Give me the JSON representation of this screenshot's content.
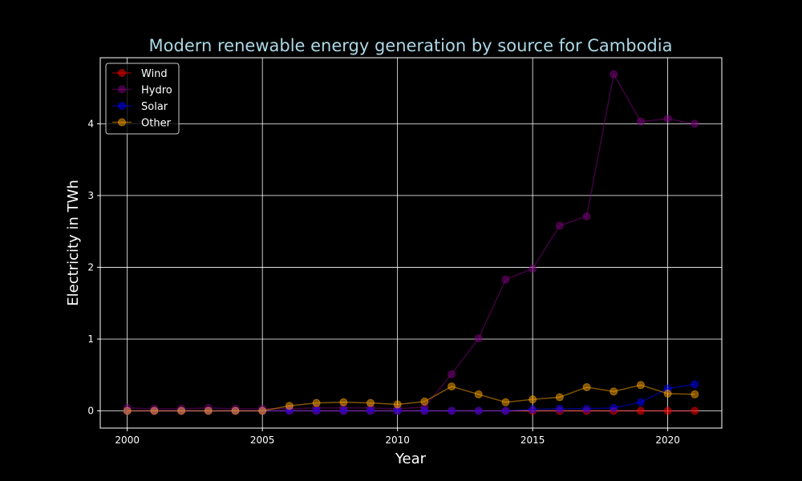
{
  "chart_data": {
    "type": "line",
    "title": "Modern renewable energy generation by source for Cambodia",
    "xlabel": "Year",
    "ylabel": "Electricity in TWh",
    "x": [
      2000,
      2001,
      2002,
      2003,
      2004,
      2005,
      2006,
      2007,
      2008,
      2009,
      2010,
      2011,
      2012,
      2013,
      2014,
      2015,
      2016,
      2017,
      2018,
      2019,
      2020,
      2021
    ],
    "xlim": [
      1999,
      2022
    ],
    "ylim": [
      -0.24,
      4.92
    ],
    "xticks": [
      2000,
      2005,
      2010,
      2015,
      2020
    ],
    "yticks": [
      0,
      1,
      2,
      3,
      4
    ],
    "grid": true,
    "legend_position": "upper-left",
    "series": [
      {
        "name": "Wind",
        "color": "#ff0000",
        "values": [
          0,
          0,
          0,
          0,
          0,
          0,
          0,
          0,
          0,
          0,
          0,
          0,
          0,
          0,
          0,
          0,
          0,
          0,
          0,
          0,
          0,
          0
        ]
      },
      {
        "name": "Hydro",
        "color": "#800080",
        "values": [
          0.04,
          0.03,
          0.03,
          0.04,
          0.03,
          0.03,
          0.03,
          0.04,
          0.04,
          0.04,
          0.03,
          0.05,
          0.51,
          1.01,
          1.83,
          1.98,
          2.58,
          2.71,
          4.69,
          4.03,
          4.07,
          4.0
        ]
      },
      {
        "name": "Solar",
        "color": "#0000ff",
        "values": [
          0,
          0,
          0,
          0,
          0,
          0,
          0,
          0,
          0,
          0,
          0,
          0,
          0,
          0,
          0,
          0.02,
          0.03,
          0.03,
          0.04,
          0.12,
          0.31,
          0.37
        ]
      },
      {
        "name": "Other",
        "color": "#ffa500",
        "values": [
          0,
          0,
          0,
          0,
          0,
          0,
          0.07,
          0.11,
          0.12,
          0.11,
          0.09,
          0.13,
          0.34,
          0.23,
          0.12,
          0.16,
          0.19,
          0.33,
          0.27,
          0.36,
          0.24,
          0.23
        ]
      }
    ]
  }
}
